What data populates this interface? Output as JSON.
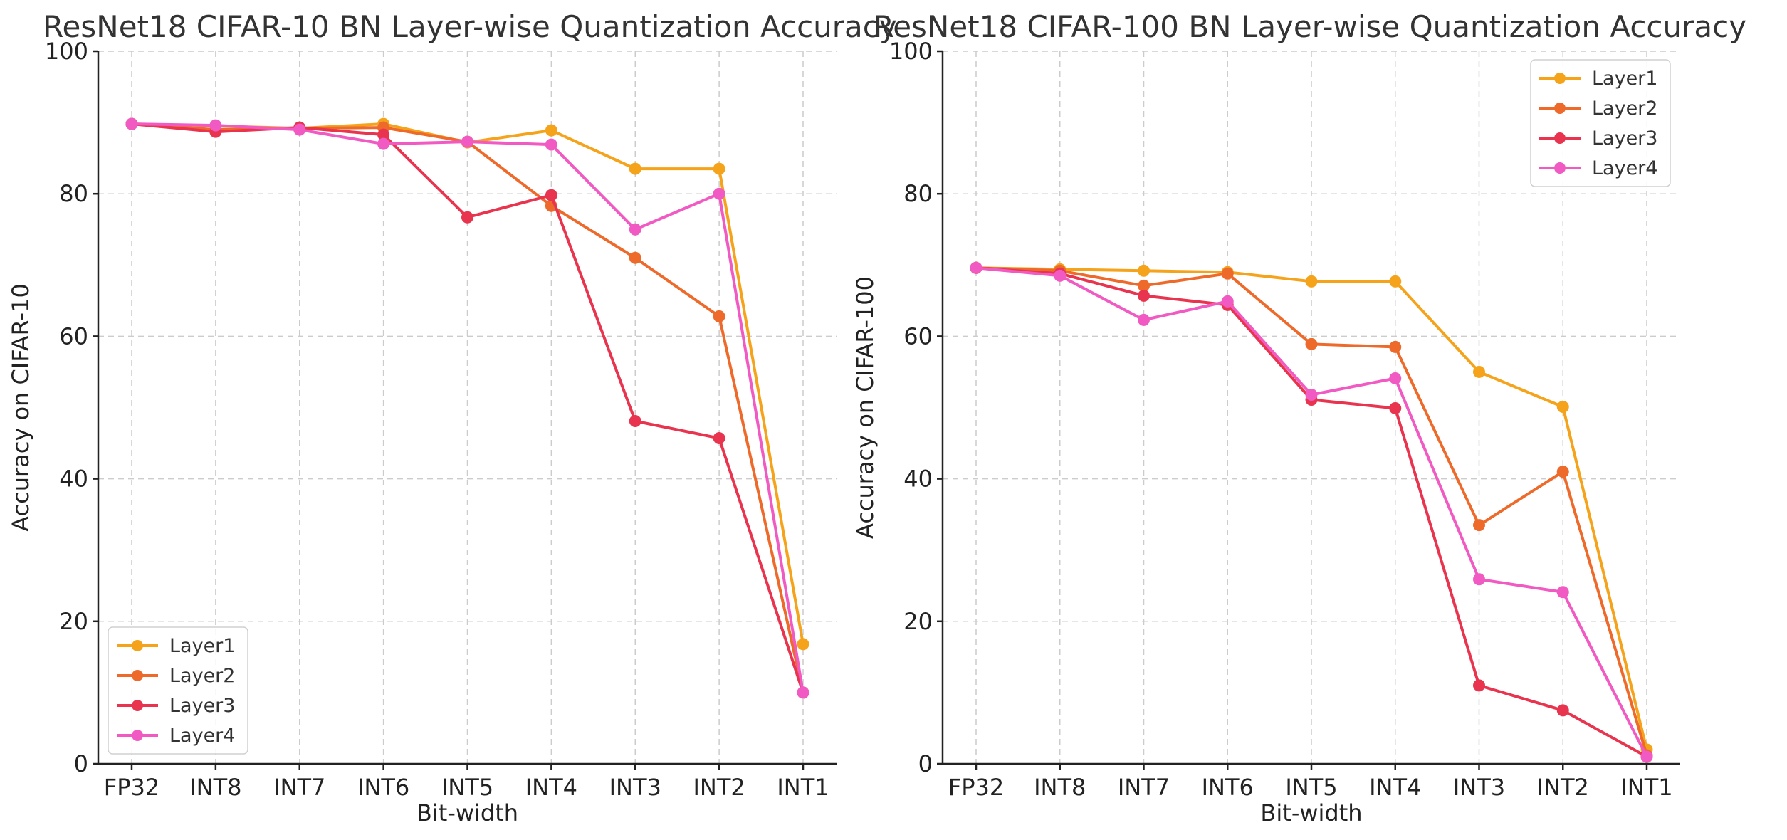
{
  "chart_data": [
    {
      "type": "line",
      "title": "ResNet18 CIFAR-10 BN Layer-wise Quantization Accuracy",
      "xlabel": "Bit-width",
      "ylabel": "Accuracy on CIFAR-10",
      "categories": [
        "FP32",
        "INT8",
        "INT7",
        "INT6",
        "INT5",
        "INT4",
        "INT3",
        "INT2",
        "INT1"
      ],
      "ylim": [
        0,
        100
      ],
      "yticks": [
        0,
        20,
        40,
        60,
        80,
        100
      ],
      "grid": true,
      "legend_position": "lower-left",
      "series": [
        {
          "name": "Layer1",
          "color": "#F5A31A",
          "values": [
            89.8,
            89.5,
            89.2,
            89.8,
            87.2,
            88.9,
            83.5,
            83.5,
            16.8
          ]
        },
        {
          "name": "Layer2",
          "color": "#EE6A2A",
          "values": [
            89.8,
            89.0,
            89.2,
            89.3,
            87.3,
            78.3,
            71.0,
            62.8,
            10.0
          ]
        },
        {
          "name": "Layer3",
          "color": "#E8344E",
          "values": [
            89.8,
            88.7,
            89.3,
            88.3,
            76.7,
            79.8,
            48.1,
            45.7,
            10.0
          ]
        },
        {
          "name": "Layer4",
          "color": "#F05AC2",
          "values": [
            89.8,
            89.6,
            89.0,
            87.0,
            87.3,
            86.9,
            75.0,
            80.0,
            10.0
          ]
        }
      ]
    },
    {
      "type": "line",
      "title": "ResNet18 CIFAR-100 BN Layer-wise Quantization Accuracy",
      "xlabel": "Bit-width",
      "ylabel": "Accuracy on CIFAR-100",
      "categories": [
        "FP32",
        "INT8",
        "INT7",
        "INT6",
        "INT5",
        "INT4",
        "INT3",
        "INT2",
        "INT1"
      ],
      "ylim": [
        0,
        100
      ],
      "yticks": [
        0,
        20,
        40,
        60,
        80,
        100
      ],
      "grid": true,
      "legend_position": "upper-right",
      "series": [
        {
          "name": "Layer1",
          "color": "#F5A31A",
          "values": [
            69.6,
            69.4,
            69.2,
            69.0,
            67.7,
            67.7,
            55.0,
            50.1,
            2.0
          ]
        },
        {
          "name": "Layer2",
          "color": "#EE6A2A",
          "values": [
            69.6,
            69.2,
            67.1,
            68.8,
            58.9,
            58.5,
            33.5,
            41.0,
            1.2
          ]
        },
        {
          "name": "Layer3",
          "color": "#E8344E",
          "values": [
            69.6,
            68.8,
            65.7,
            64.4,
            51.1,
            49.9,
            11.0,
            7.5,
            1.0
          ]
        },
        {
          "name": "Layer4",
          "color": "#F05AC2",
          "values": [
            69.6,
            68.5,
            62.3,
            64.9,
            51.8,
            54.1,
            25.9,
            24.1,
            1.0
          ]
        }
      ]
    }
  ]
}
